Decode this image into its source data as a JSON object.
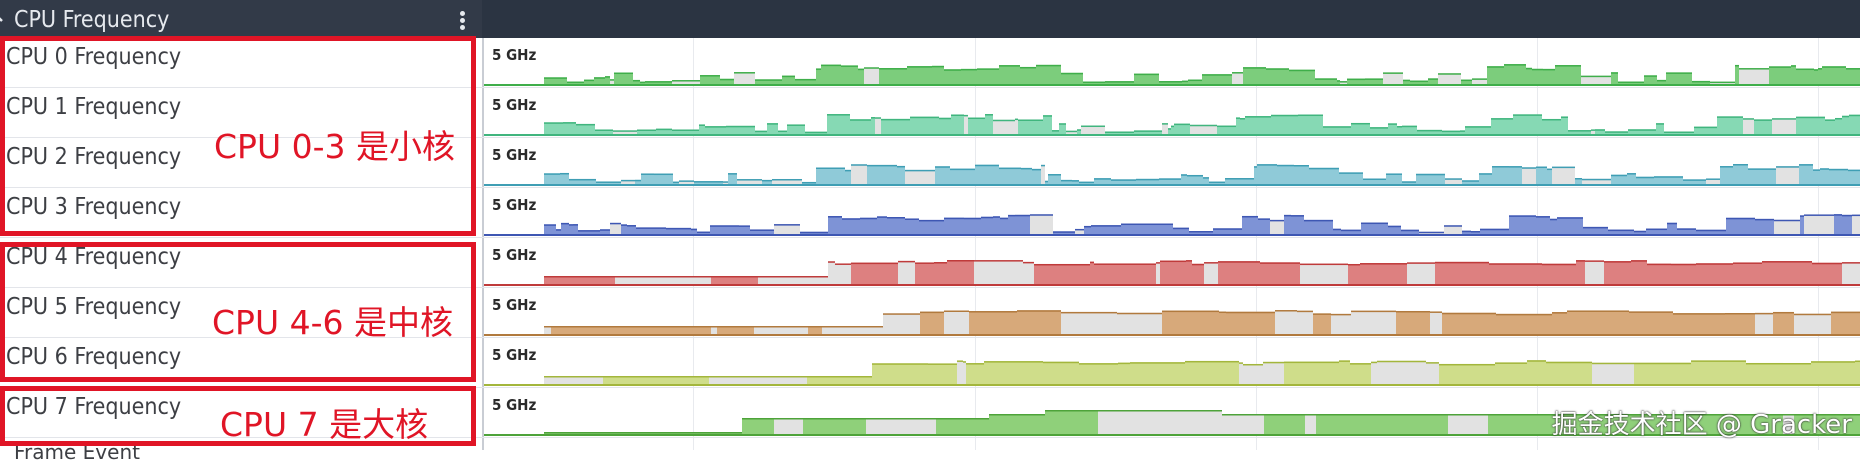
{
  "header": {
    "title": "CPU Frequency",
    "menu_icon": "kebab-icon"
  },
  "tracks": [
    {
      "label": "CPU 0 Frequency",
      "scale": "5 GHz",
      "color": "#7ccd7c",
      "outline": "#3fae4a"
    },
    {
      "label": "CPU 1 Frequency",
      "scale": "5 GHz",
      "color": "#86d9b4",
      "outline": "#40b57e"
    },
    {
      "label": "CPU 2 Frequency",
      "scale": "5 GHz",
      "color": "#8fcad8",
      "outline": "#3f9eb4"
    },
    {
      "label": "CPU 3 Frequency",
      "scale": "5 GHz",
      "color": "#7e93d6",
      "outline": "#3e57b3"
    },
    {
      "label": "CPU 4 Frequency",
      "scale": "5 GHz",
      "color": "#dd8080",
      "outline": "#bf3b3b"
    },
    {
      "label": "CPU 5 Frequency",
      "scale": "5 GHz",
      "color": "#d7a97a",
      "outline": "#b17a3e"
    },
    {
      "label": "CPU 6 Frequency",
      "scale": "5 GHz",
      "color": "#cfdd8a",
      "outline": "#a3b63c"
    },
    {
      "label": "CPU 7 Frequency",
      "scale": "5 GHz",
      "color": "#8fd07a",
      "outline": "#4ea33a"
    }
  ],
  "annotations": {
    "small_cores": "CPU 0-3 是小核",
    "mid_cores": "CPU 4-6 是中核",
    "big_core": "CPU 7 是大核"
  },
  "footer_partial": "Frame Event",
  "watermark": "掘金技术社区 @ Gracker"
}
